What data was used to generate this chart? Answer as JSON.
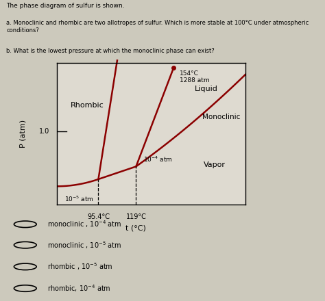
{
  "title_text": "The phase diagram of sulfur is shown.",
  "question_a": "a. Monoclinic and rhombic are two allotropes of sulfur. Which is more stable at 100°C under atmospheric conditions?",
  "question_b": "b. What is the lowest pressure at which the monoclinic phase can exist?",
  "ylabel": "P (atm)",
  "xlabel": "t (°C)",
  "label_rhombic": "Rhombic",
  "label_liquid": "Liquid",
  "label_monoclinic": "Monoclinic",
  "label_vapor": "Vapor",
  "ytick_1": "1.0",
  "xtick1": "95.4°C",
  "xtick2": "119°C",
  "ann_top": "154°C\n1288 atm",
  "ann_low1": "$10^{-5}$ atm",
  "ann_low2": "$10^{-4}$ atm",
  "choices": [
    "monoclinic , $10^{-4}$ atm",
    "monoclinic , $10^{-5}$ atm",
    "rhombic , $10^{-5}$ atm",
    "rhombic, $10^{-4}$ atm"
  ],
  "curve_color": "#8B0000",
  "bg_color": "#ccc9bc",
  "plot_bg": "#dedad0"
}
